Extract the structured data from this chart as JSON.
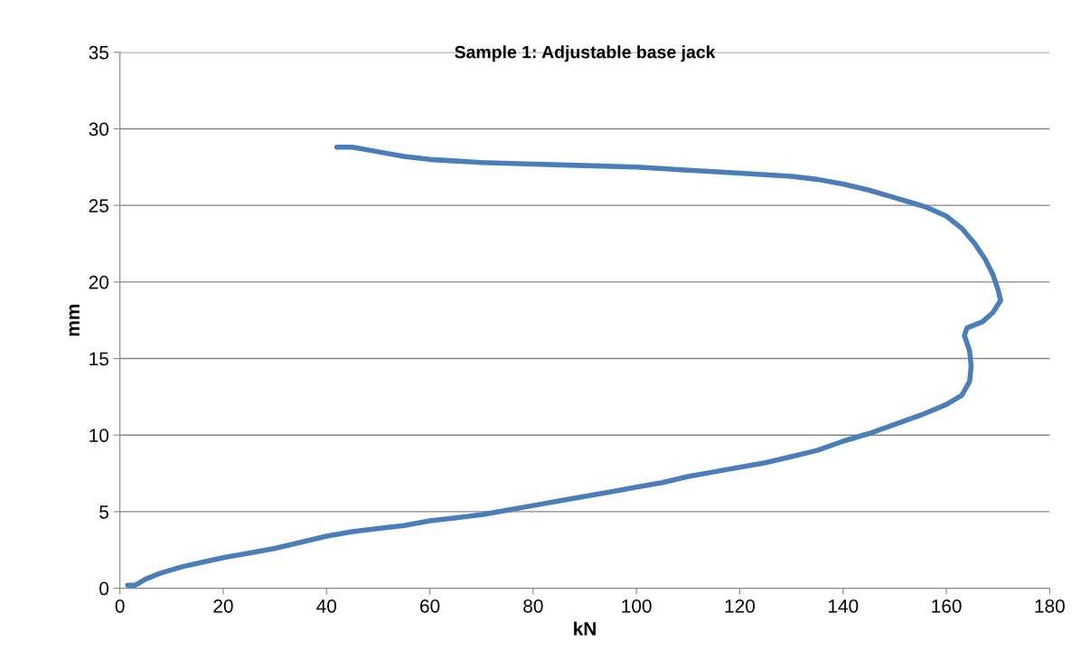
{
  "chart_data": {
    "type": "line",
    "title": "Sample 1: Adjustable base jack",
    "xlabel": "kN",
    "ylabel": "mm",
    "x": [
      1.5,
      3,
      5,
      8,
      12,
      16,
      20,
      25,
      30,
      35,
      40,
      45,
      50,
      55,
      60,
      65,
      70,
      75,
      80,
      85,
      90,
      95,
      100,
      105,
      110,
      115,
      120,
      125,
      130,
      135,
      140,
      145,
      150,
      155,
      160,
      163,
      164.5,
      164.8,
      164.5,
      163.5,
      164,
      167,
      169,
      170.5,
      170,
      169,
      167.5,
      165.5,
      163,
      160,
      156,
      150,
      145,
      140,
      135,
      130,
      125,
      120,
      110,
      100,
      90,
      80,
      70,
      60,
      55,
      50,
      45,
      42
    ],
    "series": [
      {
        "color": "#4a7ebb",
        "values": [
          0.2,
          0.2,
          0.6,
          1.0,
          1.4,
          1.7,
          2.0,
          2.3,
          2.6,
          3.0,
          3.4,
          3.7,
          3.9,
          4.1,
          4.4,
          4.6,
          4.8,
          5.1,
          5.4,
          5.7,
          6.0,
          6.3,
          6.6,
          6.9,
          7.3,
          7.6,
          7.9,
          8.2,
          8.6,
          9.0,
          9.6,
          10.1,
          10.7,
          11.3,
          12.0,
          12.6,
          13.5,
          14.5,
          15.5,
          16.5,
          17.0,
          17.4,
          18.0,
          18.8,
          19.5,
          20.5,
          21.5,
          22.5,
          23.5,
          24.3,
          24.9,
          25.5,
          26.0,
          26.4,
          26.7,
          26.9,
          27.0,
          27.1,
          27.3,
          27.5,
          27.6,
          27.7,
          27.8,
          28.0,
          28.2,
          28.5,
          28.8,
          28.8
        ]
      }
    ],
    "xlim": [
      0,
      180
    ],
    "xticks": [
      0,
      20,
      40,
      60,
      80,
      100,
      120,
      140,
      160,
      180
    ],
    "ylim": [
      0,
      35
    ],
    "yticks": [
      0,
      5,
      10,
      15,
      20,
      25,
      30,
      35
    ],
    "grid": "y",
    "legend": false,
    "marker": "none",
    "line_style": "solid"
  }
}
